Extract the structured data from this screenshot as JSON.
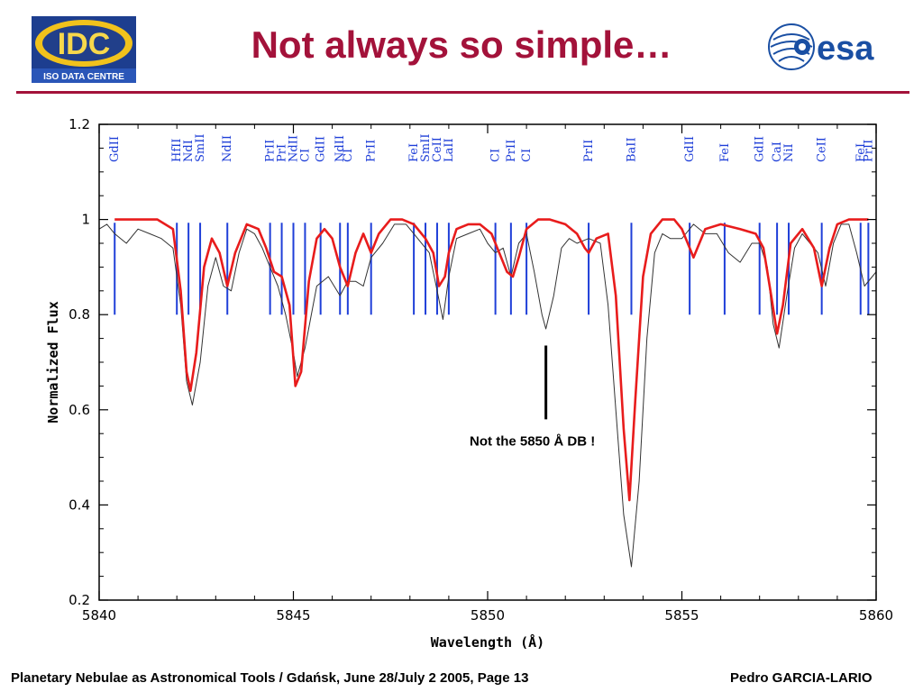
{
  "header": {
    "title": "Not always so simple…",
    "logo_left": {
      "text": "IDC",
      "subtext": "ISO DATA CENTRE",
      "icon": "idc-logo"
    },
    "logo_right": {
      "text": "esa",
      "icon": "esa-logo"
    }
  },
  "footer": {
    "left": "Planetary Nebulae as Astronomical Tools / Gdańsk, June 28/July 2 2005, Page 13",
    "right": "Pedro GARCIA-LARIO"
  },
  "colors": {
    "title": "#a3123a",
    "observed": "#333333",
    "model": "#e81c1c",
    "lines": "#1f3fd8"
  },
  "chart_data": {
    "type": "line",
    "xlabel": "Wavelength (Å)",
    "ylabel": "Normalized Flux",
    "xlim": [
      5840,
      5860
    ],
    "ylim": [
      0.2,
      1.2
    ],
    "xticks": [
      "5840",
      "5845",
      "5850",
      "5855",
      "5860"
    ],
    "yticks": [
      "0.2",
      "0.4",
      "0.6",
      "0.8",
      "1",
      "1.2"
    ],
    "grid": false,
    "annotation": {
      "text": "Not the 5850 Å DB !",
      "x": 5851.5
    },
    "line_ids": [
      {
        "label": "GdII",
        "x": 5840.4
      },
      {
        "label": "HfII",
        "x": 5842.0
      },
      {
        "label": "NdI",
        "x": 5842.3
      },
      {
        "label": "SmII",
        "x": 5842.6
      },
      {
        "label": "NdII",
        "x": 5843.3
      },
      {
        "label": "PrII",
        "x": 5844.4
      },
      {
        "label": "PrI",
        "x": 5844.7
      },
      {
        "label": "NdII",
        "x": 5845.0
      },
      {
        "label": "CI",
        "x": 5845.3
      },
      {
        "label": "GdII",
        "x": 5845.7
      },
      {
        "label": "NdII",
        "x": 5846.2
      },
      {
        "label": "CI",
        "x": 5846.4
      },
      {
        "label": "PrII",
        "x": 5847.0
      },
      {
        "label": "FeI",
        "x": 5848.1
      },
      {
        "label": "SmII",
        "x": 5848.4
      },
      {
        "label": "CeII",
        "x": 5848.7
      },
      {
        "label": "LaII",
        "x": 5849.0
      },
      {
        "label": "CI",
        "x": 5850.2
      },
      {
        "label": "PrII",
        "x": 5850.6
      },
      {
        "label": "CI",
        "x": 5851.0
      },
      {
        "label": "PrII",
        "x": 5852.6
      },
      {
        "label": "BaII",
        "x": 5853.7
      },
      {
        "label": "GdII",
        "x": 5855.2
      },
      {
        "label": "FeI",
        "x": 5856.1
      },
      {
        "label": "GdII",
        "x": 5857.0
      },
      {
        "label": "CaI",
        "x": 5857.45
      },
      {
        "label": "NiI",
        "x": 5857.75
      },
      {
        "label": "CeII",
        "x": 5858.6
      },
      {
        "label": "FeI",
        "x": 5859.6
      },
      {
        "label": "PrII",
        "x": 5859.8
      }
    ],
    "series": [
      {
        "style": "observed",
        "color": "#333333",
        "x": [
          5840.0,
          5840.2,
          5840.4,
          5840.7,
          5841.0,
          5841.3,
          5841.6,
          5841.9,
          5842.1,
          5842.25,
          5842.4,
          5842.6,
          5842.8,
          5843.0,
          5843.2,
          5843.4,
          5843.6,
          5843.8,
          5844.0,
          5844.2,
          5844.4,
          5844.6,
          5844.8,
          5845.0,
          5845.1,
          5845.3,
          5845.6,
          5845.9,
          5846.2,
          5846.4,
          5846.6,
          5846.8,
          5847.0,
          5847.3,
          5847.6,
          5847.9,
          5848.2,
          5848.5,
          5848.7,
          5848.85,
          5849.0,
          5849.2,
          5849.5,
          5849.8,
          5850.0,
          5850.2,
          5850.4,
          5850.6,
          5850.8,
          5851.0,
          5851.2,
          5851.4,
          5851.5,
          5851.7,
          5851.9,
          5852.1,
          5852.3,
          5852.6,
          5852.9,
          5853.1,
          5853.3,
          5853.5,
          5853.7,
          5853.9,
          5854.1,
          5854.3,
          5854.5,
          5854.7,
          5855.0,
          5855.3,
          5855.6,
          5855.9,
          5856.2,
          5856.5,
          5856.8,
          5857.0,
          5857.2,
          5857.35,
          5857.5,
          5857.7,
          5857.9,
          5858.1,
          5858.3,
          5858.5,
          5858.7,
          5858.9,
          5859.1,
          5859.3,
          5859.5,
          5859.7,
          5859.9,
          5860.0
        ],
        "y": [
          0.98,
          0.99,
          0.97,
          0.95,
          0.98,
          0.97,
          0.96,
          0.94,
          0.82,
          0.66,
          0.61,
          0.7,
          0.86,
          0.92,
          0.86,
          0.85,
          0.93,
          0.98,
          0.97,
          0.94,
          0.9,
          0.86,
          0.8,
          0.72,
          0.67,
          0.73,
          0.86,
          0.88,
          0.84,
          0.87,
          0.87,
          0.86,
          0.92,
          0.95,
          0.99,
          0.99,
          0.96,
          0.93,
          0.85,
          0.79,
          0.88,
          0.96,
          0.97,
          0.98,
          0.95,
          0.93,
          0.94,
          0.88,
          0.95,
          0.97,
          0.89,
          0.8,
          0.77,
          0.84,
          0.94,
          0.96,
          0.95,
          0.96,
          0.95,
          0.82,
          0.6,
          0.38,
          0.27,
          0.45,
          0.75,
          0.93,
          0.97,
          0.96,
          0.96,
          0.99,
          0.97,
          0.97,
          0.93,
          0.91,
          0.95,
          0.95,
          0.9,
          0.78,
          0.73,
          0.84,
          0.94,
          0.97,
          0.95,
          0.93,
          0.86,
          0.95,
          0.99,
          0.99,
          0.93,
          0.86,
          0.88,
          0.89
        ]
      },
      {
        "style": "model",
        "color": "#e81c1c",
        "x": [
          5840.4,
          5841.0,
          5841.5,
          5841.9,
          5842.1,
          5842.25,
          5842.35,
          5842.5,
          5842.7,
          5842.9,
          5843.1,
          5843.3,
          5843.5,
          5843.8,
          5844.1,
          5844.3,
          5844.5,
          5844.7,
          5844.9,
          5845.05,
          5845.2,
          5845.4,
          5845.6,
          5845.8,
          5846.0,
          5846.2,
          5846.4,
          5846.6,
          5846.8,
          5847.0,
          5847.2,
          5847.5,
          5847.8,
          5848.1,
          5848.4,
          5848.6,
          5848.75,
          5848.9,
          5849.0,
          5849.2,
          5849.5,
          5849.8,
          5850.1,
          5850.3,
          5850.5,
          5850.65,
          5850.8,
          5851.0,
          5851.3,
          5851.6,
          5852.0,
          5852.3,
          5852.5,
          5852.6,
          5852.8,
          5853.1,
          5853.3,
          5853.5,
          5853.65,
          5853.8,
          5854.0,
          5854.2,
          5854.5,
          5854.8,
          5855.0,
          5855.15,
          5855.3,
          5855.6,
          5856.0,
          5856.5,
          5856.9,
          5857.1,
          5857.3,
          5857.45,
          5857.6,
          5857.8,
          5858.1,
          5858.4,
          5858.6,
          5858.8,
          5859.0,
          5859.3,
          5859.8
        ],
        "y": [
          1.0,
          1.0,
          1.0,
          0.98,
          0.85,
          0.68,
          0.64,
          0.72,
          0.9,
          0.96,
          0.93,
          0.86,
          0.93,
          0.99,
          0.98,
          0.94,
          0.89,
          0.88,
          0.82,
          0.65,
          0.68,
          0.87,
          0.96,
          0.98,
          0.96,
          0.9,
          0.86,
          0.93,
          0.97,
          0.93,
          0.97,
          1.0,
          1.0,
          0.99,
          0.96,
          0.93,
          0.86,
          0.88,
          0.93,
          0.98,
          0.99,
          0.99,
          0.97,
          0.93,
          0.89,
          0.88,
          0.92,
          0.98,
          1.0,
          1.0,
          0.99,
          0.97,
          0.94,
          0.93,
          0.96,
          0.97,
          0.84,
          0.56,
          0.41,
          0.62,
          0.88,
          0.97,
          1.0,
          1.0,
          0.98,
          0.95,
          0.92,
          0.98,
          0.99,
          0.98,
          0.97,
          0.94,
          0.84,
          0.76,
          0.82,
          0.95,
          0.98,
          0.94,
          0.86,
          0.94,
          0.99,
          1.0,
          1.0
        ]
      }
    ]
  }
}
